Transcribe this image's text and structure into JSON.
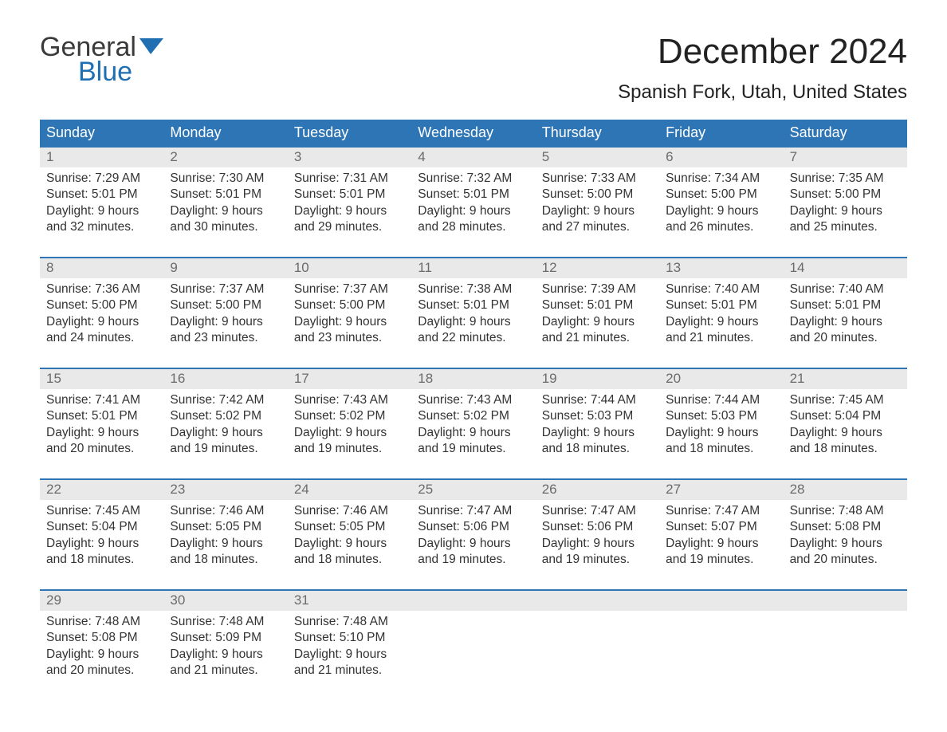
{
  "logo": {
    "word1": "General",
    "word2": "Blue"
  },
  "header": {
    "month_year": "December 2024",
    "location": "Spanish Fork, Utah, United States"
  },
  "colors": {
    "header_bg": "#2e75b6",
    "header_text": "#ffffff",
    "daynum_bg": "#e9e9e9",
    "daynum_text": "#6b6b6b",
    "week_border": "#2e75b6",
    "body_text": "#333333",
    "logo_gray": "#3a3a3a",
    "logo_blue": "#1f6fb2",
    "page_bg": "#ffffff"
  },
  "typography": {
    "title_fontsize_pt": 33,
    "location_fontsize_pt": 18,
    "dow_fontsize_pt": 14,
    "daynum_fontsize_pt": 13,
    "body_fontsize_pt": 12
  },
  "calendar": {
    "days_of_week": [
      "Sunday",
      "Monday",
      "Tuesday",
      "Wednesday",
      "Thursday",
      "Friday",
      "Saturday"
    ],
    "weeks": [
      {
        "nums": [
          "1",
          "2",
          "3",
          "4",
          "5",
          "6",
          "7"
        ],
        "cells": [
          {
            "sunrise": "Sunrise: 7:29 AM",
            "sunset": "Sunset: 5:01 PM",
            "dl1": "Daylight: 9 hours",
            "dl2": "and 32 minutes."
          },
          {
            "sunrise": "Sunrise: 7:30 AM",
            "sunset": "Sunset: 5:01 PM",
            "dl1": "Daylight: 9 hours",
            "dl2": "and 30 minutes."
          },
          {
            "sunrise": "Sunrise: 7:31 AM",
            "sunset": "Sunset: 5:01 PM",
            "dl1": "Daylight: 9 hours",
            "dl2": "and 29 minutes."
          },
          {
            "sunrise": "Sunrise: 7:32 AM",
            "sunset": "Sunset: 5:01 PM",
            "dl1": "Daylight: 9 hours",
            "dl2": "and 28 minutes."
          },
          {
            "sunrise": "Sunrise: 7:33 AM",
            "sunset": "Sunset: 5:00 PM",
            "dl1": "Daylight: 9 hours",
            "dl2": "and 27 minutes."
          },
          {
            "sunrise": "Sunrise: 7:34 AM",
            "sunset": "Sunset: 5:00 PM",
            "dl1": "Daylight: 9 hours",
            "dl2": "and 26 minutes."
          },
          {
            "sunrise": "Sunrise: 7:35 AM",
            "sunset": "Sunset: 5:00 PM",
            "dl1": "Daylight: 9 hours",
            "dl2": "and 25 minutes."
          }
        ]
      },
      {
        "nums": [
          "8",
          "9",
          "10",
          "11",
          "12",
          "13",
          "14"
        ],
        "cells": [
          {
            "sunrise": "Sunrise: 7:36 AM",
            "sunset": "Sunset: 5:00 PM",
            "dl1": "Daylight: 9 hours",
            "dl2": "and 24 minutes."
          },
          {
            "sunrise": "Sunrise: 7:37 AM",
            "sunset": "Sunset: 5:00 PM",
            "dl1": "Daylight: 9 hours",
            "dl2": "and 23 minutes."
          },
          {
            "sunrise": "Sunrise: 7:37 AM",
            "sunset": "Sunset: 5:00 PM",
            "dl1": "Daylight: 9 hours",
            "dl2": "and 23 minutes."
          },
          {
            "sunrise": "Sunrise: 7:38 AM",
            "sunset": "Sunset: 5:01 PM",
            "dl1": "Daylight: 9 hours",
            "dl2": "and 22 minutes."
          },
          {
            "sunrise": "Sunrise: 7:39 AM",
            "sunset": "Sunset: 5:01 PM",
            "dl1": "Daylight: 9 hours",
            "dl2": "and 21 minutes."
          },
          {
            "sunrise": "Sunrise: 7:40 AM",
            "sunset": "Sunset: 5:01 PM",
            "dl1": "Daylight: 9 hours",
            "dl2": "and 21 minutes."
          },
          {
            "sunrise": "Sunrise: 7:40 AM",
            "sunset": "Sunset: 5:01 PM",
            "dl1": "Daylight: 9 hours",
            "dl2": "and 20 minutes."
          }
        ]
      },
      {
        "nums": [
          "15",
          "16",
          "17",
          "18",
          "19",
          "20",
          "21"
        ],
        "cells": [
          {
            "sunrise": "Sunrise: 7:41 AM",
            "sunset": "Sunset: 5:01 PM",
            "dl1": "Daylight: 9 hours",
            "dl2": "and 20 minutes."
          },
          {
            "sunrise": "Sunrise: 7:42 AM",
            "sunset": "Sunset: 5:02 PM",
            "dl1": "Daylight: 9 hours",
            "dl2": "and 19 minutes."
          },
          {
            "sunrise": "Sunrise: 7:43 AM",
            "sunset": "Sunset: 5:02 PM",
            "dl1": "Daylight: 9 hours",
            "dl2": "and 19 minutes."
          },
          {
            "sunrise": "Sunrise: 7:43 AM",
            "sunset": "Sunset: 5:02 PM",
            "dl1": "Daylight: 9 hours",
            "dl2": "and 19 minutes."
          },
          {
            "sunrise": "Sunrise: 7:44 AM",
            "sunset": "Sunset: 5:03 PM",
            "dl1": "Daylight: 9 hours",
            "dl2": "and 18 minutes."
          },
          {
            "sunrise": "Sunrise: 7:44 AM",
            "sunset": "Sunset: 5:03 PM",
            "dl1": "Daylight: 9 hours",
            "dl2": "and 18 minutes."
          },
          {
            "sunrise": "Sunrise: 7:45 AM",
            "sunset": "Sunset: 5:04 PM",
            "dl1": "Daylight: 9 hours",
            "dl2": "and 18 minutes."
          }
        ]
      },
      {
        "nums": [
          "22",
          "23",
          "24",
          "25",
          "26",
          "27",
          "28"
        ],
        "cells": [
          {
            "sunrise": "Sunrise: 7:45 AM",
            "sunset": "Sunset: 5:04 PM",
            "dl1": "Daylight: 9 hours",
            "dl2": "and 18 minutes."
          },
          {
            "sunrise": "Sunrise: 7:46 AM",
            "sunset": "Sunset: 5:05 PM",
            "dl1": "Daylight: 9 hours",
            "dl2": "and 18 minutes."
          },
          {
            "sunrise": "Sunrise: 7:46 AM",
            "sunset": "Sunset: 5:05 PM",
            "dl1": "Daylight: 9 hours",
            "dl2": "and 18 minutes."
          },
          {
            "sunrise": "Sunrise: 7:47 AM",
            "sunset": "Sunset: 5:06 PM",
            "dl1": "Daylight: 9 hours",
            "dl2": "and 19 minutes."
          },
          {
            "sunrise": "Sunrise: 7:47 AM",
            "sunset": "Sunset: 5:06 PM",
            "dl1": "Daylight: 9 hours",
            "dl2": "and 19 minutes."
          },
          {
            "sunrise": "Sunrise: 7:47 AM",
            "sunset": "Sunset: 5:07 PM",
            "dl1": "Daylight: 9 hours",
            "dl2": "and 19 minutes."
          },
          {
            "sunrise": "Sunrise: 7:48 AM",
            "sunset": "Sunset: 5:08 PM",
            "dl1": "Daylight: 9 hours",
            "dl2": "and 20 minutes."
          }
        ]
      },
      {
        "nums": [
          "29",
          "30",
          "31",
          "",
          "",
          "",
          ""
        ],
        "cells": [
          {
            "sunrise": "Sunrise: 7:48 AM",
            "sunset": "Sunset: 5:08 PM",
            "dl1": "Daylight: 9 hours",
            "dl2": "and 20 minutes."
          },
          {
            "sunrise": "Sunrise: 7:48 AM",
            "sunset": "Sunset: 5:09 PM",
            "dl1": "Daylight: 9 hours",
            "dl2": "and 21 minutes."
          },
          {
            "sunrise": "Sunrise: 7:48 AM",
            "sunset": "Sunset: 5:10 PM",
            "dl1": "Daylight: 9 hours",
            "dl2": "and 21 minutes."
          },
          {
            "sunrise": "",
            "sunset": "",
            "dl1": "",
            "dl2": ""
          },
          {
            "sunrise": "",
            "sunset": "",
            "dl1": "",
            "dl2": ""
          },
          {
            "sunrise": "",
            "sunset": "",
            "dl1": "",
            "dl2": ""
          },
          {
            "sunrise": "",
            "sunset": "",
            "dl1": "",
            "dl2": ""
          }
        ]
      }
    ]
  }
}
